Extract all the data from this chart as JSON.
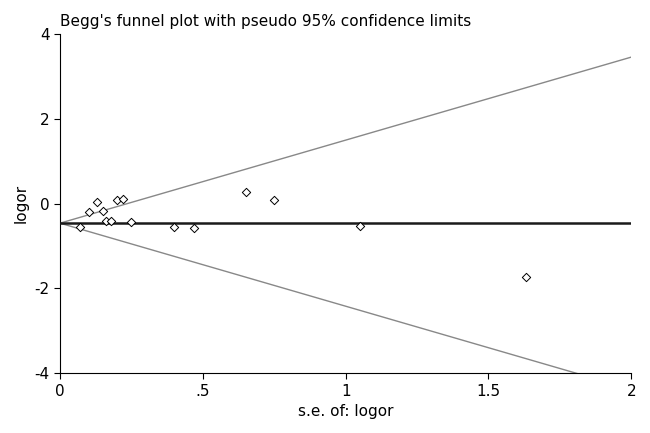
{
  "title": "Begg's funnel plot with pseudo 95% confidence limits",
  "xlabel": "s.e. of: logor",
  "ylabel": "logor",
  "xlim": [
    0,
    2
  ],
  "ylim": [
    -4,
    4
  ],
  "xticks": [
    0,
    0.5,
    1,
    1.5,
    2
  ],
  "yticks": [
    -4,
    -2,
    0,
    2,
    4
  ],
  "xtick_labels": [
    "0",
    ".5",
    "1",
    "1.5",
    "2"
  ],
  "ytick_labels": [
    "-4",
    "-2",
    "0",
    "2",
    "4"
  ],
  "mean_logor": -0.46,
  "scatter_x": [
    0.07,
    0.1,
    0.13,
    0.15,
    0.16,
    0.18,
    0.2,
    0.22,
    0.25,
    0.4,
    0.47,
    0.65,
    0.75,
    1.05,
    1.63
  ],
  "scatter_y": [
    -0.55,
    -0.2,
    0.05,
    -0.18,
    -0.4,
    -0.42,
    0.08,
    0.12,
    -0.44,
    -0.55,
    -0.58,
    0.28,
    0.08,
    -0.52,
    -1.72
  ],
  "ci_multiplier": 1.96,
  "funnel_max_x": 2.0,
  "line_color": "#888888",
  "mean_line_color": "#1a1a1a",
  "scatter_facecolor": "white",
  "scatter_edgecolor": "#000000",
  "scatter_size": 18,
  "background_color": "#ffffff",
  "title_fontsize": 11,
  "label_fontsize": 11,
  "tick_fontsize": 11
}
